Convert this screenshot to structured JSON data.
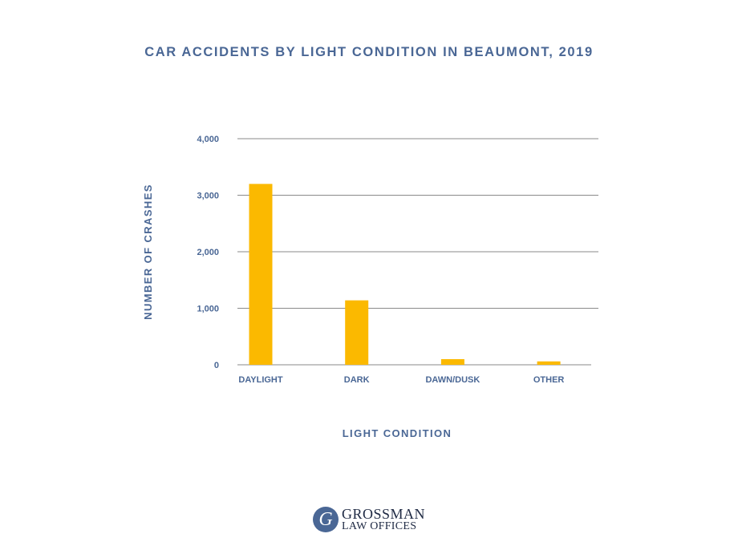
{
  "chart_data": {
    "type": "bar",
    "title": "CAR ACCIDENTS BY LIGHT CONDITION IN BEAUMONT, 2019",
    "xlabel": "LIGHT CONDITION",
    "ylabel": "NUMBER OF CRASHES",
    "categories": [
      "DAYLIGHT",
      "DARK",
      "DAWN/DUSK",
      "OTHER"
    ],
    "values": [
      3200,
      1140,
      100,
      60
    ],
    "ylim": [
      0,
      4000
    ],
    "yticks": [
      0,
      1000,
      2000,
      3000,
      4000
    ],
    "ytick_labels": [
      "0",
      "1,000",
      "2,000",
      "3,000",
      "4,000"
    ],
    "grid": true,
    "bar_color": "#fbb900",
    "text_color": "#4a6795",
    "grid_color": "#8a8a8a"
  },
  "logo": {
    "mark": "G",
    "line1": "GROSSMAN",
    "line2": "LAW OFFICES"
  }
}
